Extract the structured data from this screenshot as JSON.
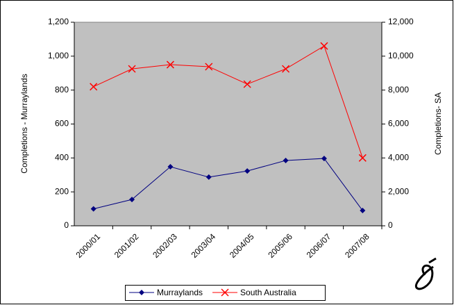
{
  "chart_data": {
    "type": "line",
    "categories": [
      "2000/01",
      "2001/02",
      "2002/03",
      "2003/04",
      "2004/05",
      "2005/06",
      "2006/07",
      "2007/08"
    ],
    "y_label": "Completions - Murraylands",
    "y2_label": "Completions- SA",
    "series": [
      {
        "name": "Murraylands",
        "color": "#000080",
        "marker": "diamond",
        "values": [
          100,
          155,
          348,
          287,
          323,
          385,
          397,
          90
        ]
      },
      {
        "name": "South Australia",
        "color": "#ff0000",
        "marker": "x",
        "axis": "y2",
        "values": [
          8200,
          9250,
          9500,
          9380,
          8350,
          9250,
          10600,
          4000
        ]
      }
    ],
    "ylim": [
      0,
      1200
    ],
    "yticks": [
      0,
      200,
      400,
      600,
      800,
      {
        "value": 1000,
        "label": "1,000"
      },
      {
        "value": 1200,
        "label": "1,200"
      }
    ],
    "y2lim": [
      0,
      12000
    ],
    "y2ticks": [
      0,
      {
        "value": 2000,
        "label": "2,000"
      },
      {
        "value": 4000,
        "label": "4,000"
      },
      {
        "value": 6000,
        "label": "6,000"
      },
      {
        "value": 8000,
        "label": "8,000"
      },
      {
        "value": 10000,
        "label": "10,000"
      },
      {
        "value": 12000,
        "label": "12,000"
      }
    ],
    "grid": false,
    "legend": "bottom",
    "plot_background": "#c0c0c0"
  }
}
